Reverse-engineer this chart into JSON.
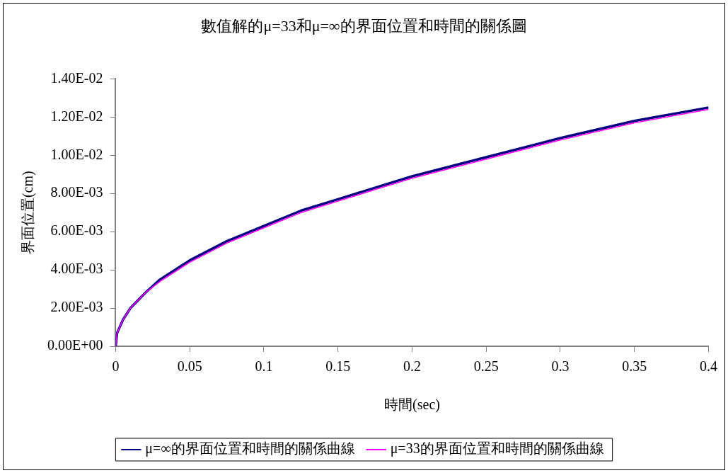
{
  "chart_data": {
    "type": "line",
    "title": "數值解的μ=33和μ=∞的界面位置和時間的關係圖",
    "xlabel": "時間(sec)",
    "ylabel": "界面位置(cm)",
    "x": [
      0,
      0.001,
      0.005,
      0.01,
      0.02,
      0.03,
      0.05,
      0.075,
      0.1,
      0.125,
      0.15,
      0.175,
      0.2,
      0.25,
      0.3,
      0.35,
      0.4
    ],
    "series": [
      {
        "name": "μ=∞的界面位置和時間的關係曲線",
        "color": "#000080",
        "values": [
          0,
          0.0007,
          0.0014,
          0.002,
          0.0028,
          0.0035,
          0.0045,
          0.0055,
          0.0063,
          0.0071,
          0.0077,
          0.0083,
          0.0089,
          0.0099,
          0.0109,
          0.0118,
          0.0125
        ]
      },
      {
        "name": "μ=33的界面位置和時間的關係曲線",
        "color": "#ff00ff",
        "values": [
          0,
          0.0007,
          0.0014,
          0.002,
          0.0028,
          0.0034,
          0.0044,
          0.0054,
          0.0062,
          0.007,
          0.0076,
          0.0082,
          0.0088,
          0.0098,
          0.0108,
          0.0117,
          0.0124
        ]
      }
    ],
    "xlim": [
      0,
      0.4
    ],
    "xticks": [
      0,
      0.05,
      0.1,
      0.15,
      0.2,
      0.25,
      0.3,
      0.35,
      0.4
    ],
    "ylim": [
      0,
      0.014
    ],
    "yticks": [
      {
        "value": 0,
        "label": "0.00E+00"
      },
      {
        "value": 0.002,
        "label": "2.00E-03"
      },
      {
        "value": 0.004,
        "label": "4.00E-03"
      },
      {
        "value": 0.006,
        "label": "6.00E-03"
      },
      {
        "value": 0.008,
        "label": "8.00E-03"
      },
      {
        "value": 0.01,
        "label": "1.00E-02"
      },
      {
        "value": 0.012,
        "label": "1.20E-02"
      },
      {
        "value": 0.014,
        "label": "1.40E-02"
      }
    ],
    "grid": false,
    "legend": "bottom",
    "marker": "none",
    "line_style": "solid"
  }
}
